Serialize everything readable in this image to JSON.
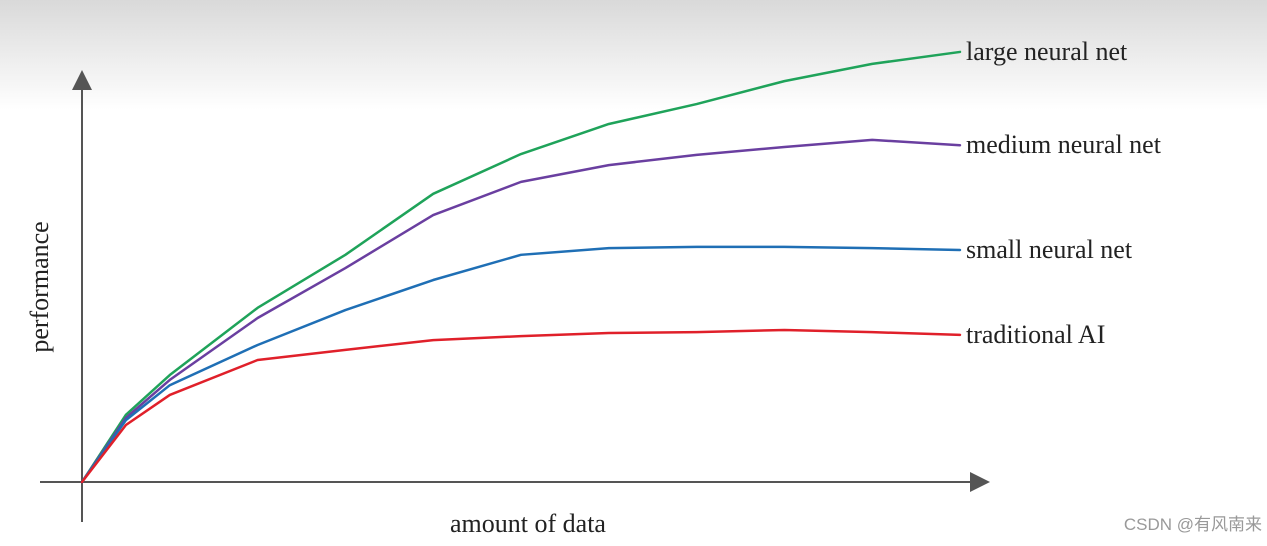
{
  "chart_data": {
    "type": "line",
    "x_label": "amount of data",
    "y_label": "performance",
    "x": [
      0,
      5,
      10,
      20,
      30,
      40,
      50,
      60,
      70,
      80,
      90,
      100
    ],
    "xlim": [
      0,
      100
    ],
    "ylim": [
      0,
      100
    ],
    "series": [
      {
        "name": "large neural net",
        "color": "#1fa35a",
        "values": [
          0,
          15.2,
          24.2,
          39.4,
          51.4,
          65.2,
          74.2,
          81,
          85.5,
          90.7,
          94.6,
          97.3
        ]
      },
      {
        "name": "medium neural net",
        "color": "#6a3fa0",
        "values": [
          0,
          14.5,
          23.1,
          37.1,
          48.4,
          60.4,
          67.9,
          71.7,
          74,
          75.8,
          77.4,
          76.2
        ]
      },
      {
        "name": "small neural net",
        "color": "#1f6fb5",
        "values": [
          0,
          14,
          21.9,
          31,
          38.9,
          45.7,
          51.4,
          52.9,
          53.2,
          53.2,
          52.9,
          52.5
        ]
      },
      {
        "name": "traditional AI",
        "color": "#e0202a",
        "values": [
          0,
          12.9,
          19.7,
          27.6,
          29.9,
          32.1,
          33,
          33.7,
          33.9,
          34.4,
          33.9,
          33.3
        ]
      }
    ],
    "watermark": "CSDN @有风南来"
  }
}
